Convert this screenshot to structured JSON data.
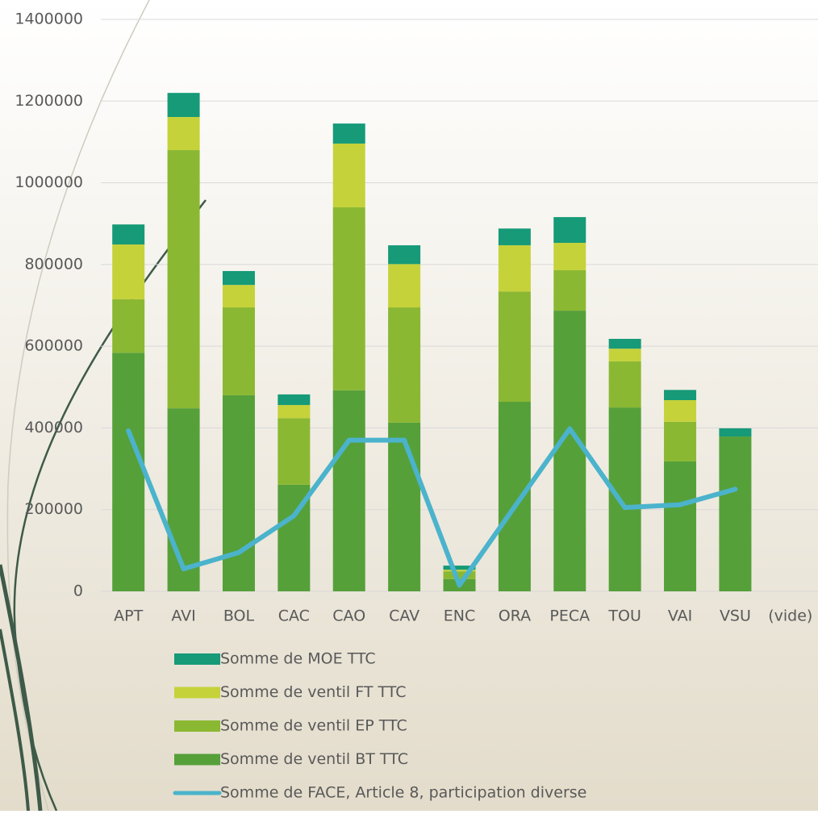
{
  "chart_data": {
    "type": "bar",
    "categories": [
      "APT",
      "AVI",
      "BOL",
      "CAC",
      "CAO",
      "CAV",
      "ENC",
      "ORA",
      "PECA",
      "TOU",
      "VAI",
      "VSU",
      "(vide)"
    ],
    "series": [
      {
        "name": "Somme de ventil BT TTC",
        "color": "#56a03a",
        "values": [
          584000,
          448000,
          480000,
          261000,
          492000,
          413000,
          30000,
          464000,
          687000,
          450000,
          318000,
          379000,
          null
        ]
      },
      {
        "name": "Somme de ventil EP TTC",
        "color": "#8bb832",
        "values": [
          131000,
          632000,
          215000,
          163000,
          448000,
          282000,
          19000,
          270000,
          99000,
          113000,
          97000,
          0,
          null
        ]
      },
      {
        "name": "Somme de ventil FT TTC",
        "color": "#c5d23a",
        "values": [
          134000,
          81000,
          55000,
          32000,
          156000,
          106000,
          4000,
          113000,
          67000,
          31000,
          53000,
          0,
          null
        ]
      },
      {
        "name": "Somme de MOE TTC",
        "color": "#169a78",
        "values": [
          49000,
          59000,
          34000,
          26000,
          49000,
          46000,
          10000,
          41000,
          63000,
          24000,
          25000,
          20000,
          null
        ]
      },
      {
        "name": "Somme de FACE, Article 8, participation diverse",
        "color": "#4bb3cc",
        "type": "line",
        "values": [
          393000,
          55000,
          95000,
          185000,
          370000,
          370000,
          15000,
          207000,
          398000,
          205000,
          212000,
          250000,
          null
        ]
      }
    ],
    "stacked": true,
    "ylim": [
      0,
      1400000
    ],
    "yticks": [
      0,
      200000,
      400000,
      600000,
      800000,
      1000000,
      1200000,
      1400000
    ],
    "grid": true,
    "legend": "bottom"
  }
}
